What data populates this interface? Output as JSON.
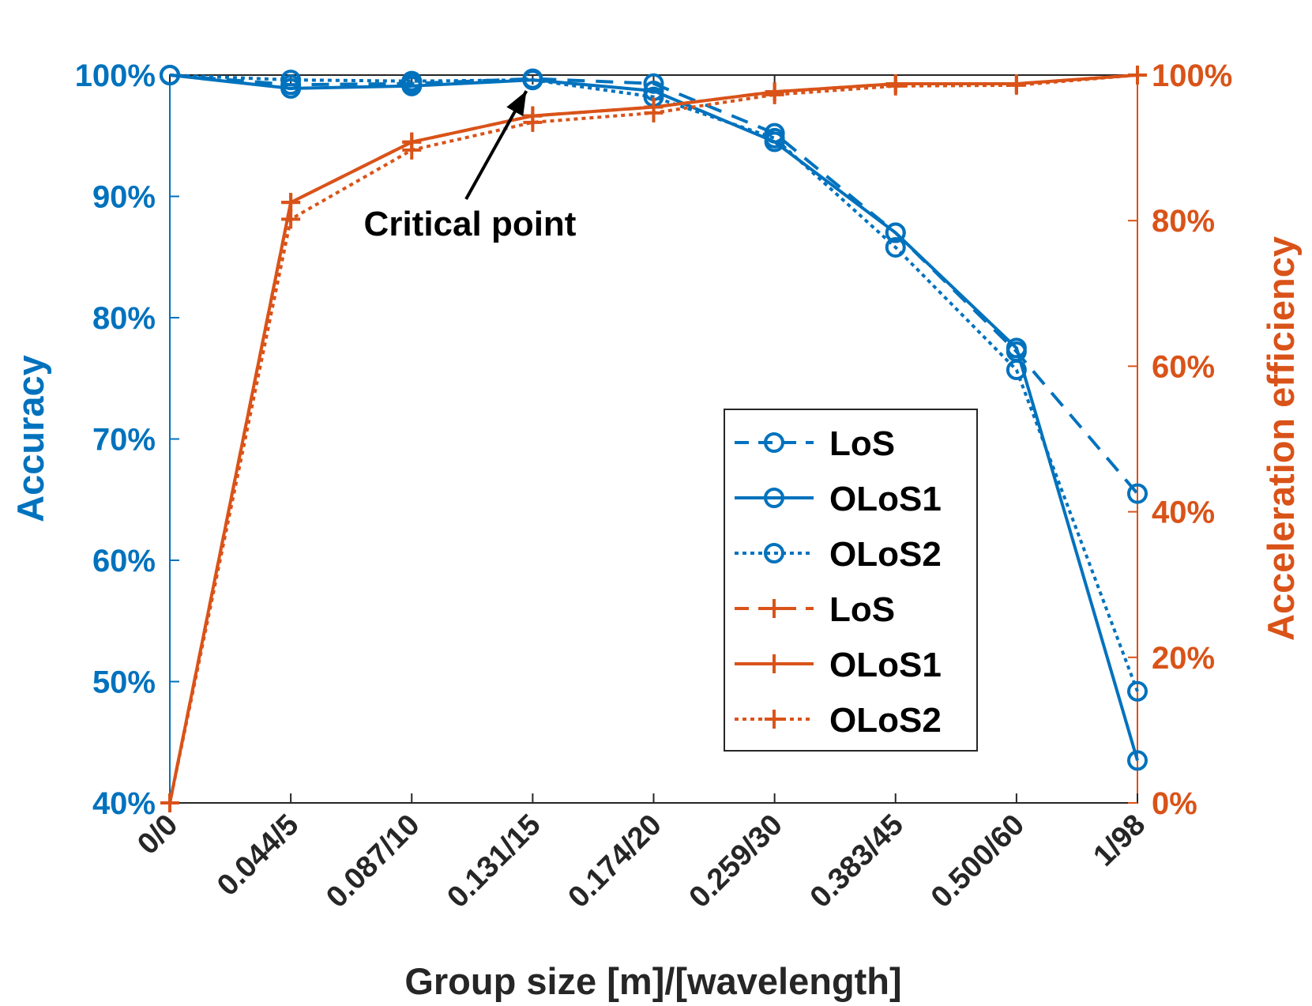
{
  "chart_data": {
    "type": "line",
    "xlabel": "Group size [m]/[wavelength]",
    "ylabel_left": "Accuracy",
    "ylabel_right": "Acceleration efficiency",
    "categories": [
      "0/0",
      "0.044/5",
      "0.087/10",
      "0.131/15",
      "0.174/20",
      "0.259/30",
      "0.383/45",
      "0.500/60",
      "1/98"
    ],
    "ylim_left": [
      40,
      100
    ],
    "ylim_right": [
      0,
      100
    ],
    "yticks_left": [
      "40%",
      "50%",
      "60%",
      "70%",
      "80%",
      "90%",
      "100%"
    ],
    "yticks_right": [
      "0%",
      "20%",
      "40%",
      "60%",
      "80%",
      "100%"
    ],
    "colors": {
      "accuracy": "#0072BD",
      "efficiency": "#D95319",
      "axes": "#262626"
    },
    "series": [
      {
        "name": "LoS",
        "axis": "left",
        "style": "dashed",
        "marker": "circle",
        "values": [
          100,
          99.2,
          99.3,
          99.7,
          99.3,
          95.2,
          87.0,
          77.2,
          65.5
        ]
      },
      {
        "name": "OLoS1",
        "axis": "left",
        "style": "solid",
        "marker": "circle",
        "values": [
          100,
          98.9,
          99.1,
          99.6,
          98.7,
          94.5,
          87.0,
          77.5,
          43.5
        ]
      },
      {
        "name": "OLoS2",
        "axis": "left",
        "style": "dotted",
        "marker": "circle",
        "values": [
          100,
          99.6,
          99.5,
          99.6,
          98.2,
          94.8,
          85.8,
          75.7,
          49.2
        ]
      },
      {
        "name": "LoS",
        "axis": "right",
        "style": "dashed",
        "marker": "plus",
        "values": [
          0,
          82.5,
          90.8,
          94.4,
          95.6,
          97.7,
          98.8,
          98.8,
          100
        ]
      },
      {
        "name": "OLoS1",
        "axis": "right",
        "style": "solid",
        "marker": "plus",
        "values": [
          0,
          82.5,
          90.8,
          94.4,
          95.6,
          97.7,
          98.8,
          98.8,
          100
        ]
      },
      {
        "name": "OLoS2",
        "axis": "right",
        "style": "dotted",
        "marker": "plus",
        "values": [
          0,
          80.2,
          89.7,
          93.5,
          94.8,
          97.3,
          98.5,
          98.6,
          100
        ]
      }
    ],
    "annotations": [
      {
        "text": "Critical point",
        "category": "0.131/15",
        "value": 99.6
      }
    ]
  }
}
